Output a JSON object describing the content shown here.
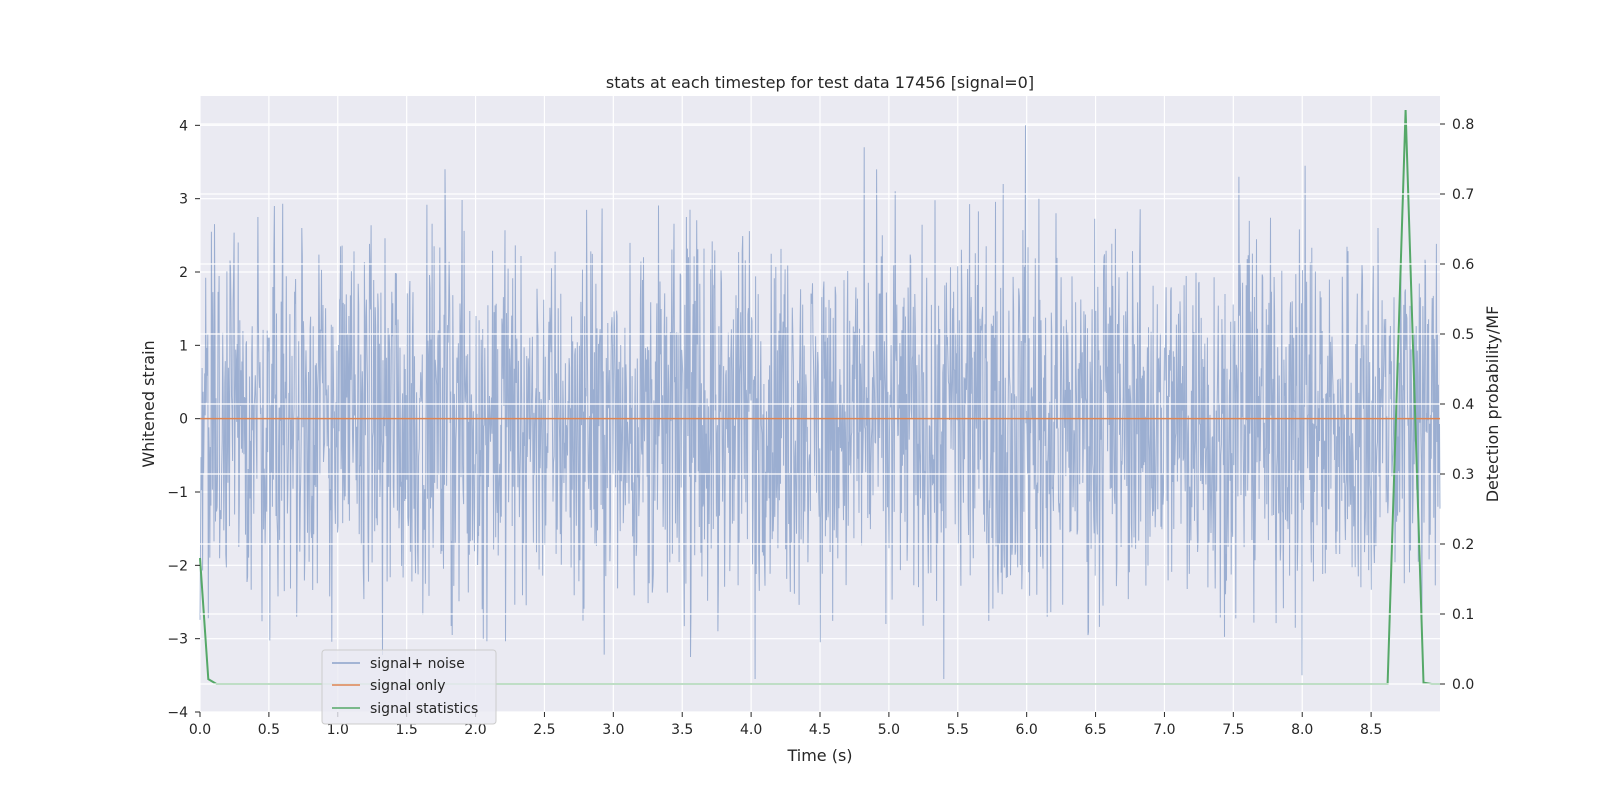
{
  "chart_data": {
    "type": "line",
    "title": "stats at each timestep for test data 17456 [signal=0]",
    "xlabel": "Time (s)",
    "ylabel": "Whitened strain",
    "y2label": "Detection probability/MF",
    "xlim": [
      0,
      9
    ],
    "ylim": [
      -4,
      4.4
    ],
    "y2lim": [
      -0.04,
      0.84
    ],
    "xticks": [
      "0.0",
      "0.5",
      "1.0",
      "1.5",
      "2.0",
      "2.5",
      "3.0",
      "3.5",
      "4.0",
      "4.5",
      "5.0",
      "5.5",
      "6.0",
      "6.5",
      "7.0",
      "7.5",
      "8.0",
      "8.5"
    ],
    "yticks": [
      "4",
      "3",
      "2",
      "1",
      "0",
      "−1",
      "−2",
      "−3",
      "−4"
    ],
    "y2ticks": [
      "0.8",
      "0.7",
      "0.6",
      "0.5",
      "0.4",
      "0.3",
      "0.2",
      "0.1",
      "0.0"
    ],
    "grid": true,
    "legend_position": "lower-left",
    "colors": {
      "signal_noise": "#4c72b0",
      "signal_only": "#dd8452",
      "signal_statistics": "#55a868",
      "axes_bg": "#eaeaf2",
      "grid": "#ffffff"
    },
    "series": [
      {
        "name": "signal+ noise",
        "axis": "left",
        "style": "noise-band",
        "typical_range": [
          -1.7,
          1.6
        ],
        "peaks": [
          {
            "x": 0.42,
            "y": 2.75
          },
          {
            "x": 0.54,
            "y": 2.9
          },
          {
            "x": 0.74,
            "y": 2.6
          },
          {
            "x": 1.78,
            "y": 3.4
          },
          {
            "x": 3.53,
            "y": 2.75
          },
          {
            "x": 4.82,
            "y": 3.7
          },
          {
            "x": 5.99,
            "y": 4.0
          },
          {
            "x": 5.83,
            "y": 3.2
          },
          {
            "x": 6.09,
            "y": 3.0
          },
          {
            "x": 7.54,
            "y": 3.3
          },
          {
            "x": 8.02,
            "y": 3.45
          },
          {
            "x": 8.55,
            "y": 2.6
          }
        ],
        "troughs": [
          {
            "x": 0.7,
            "y": -2.7
          },
          {
            "x": 1.83,
            "y": -2.95
          },
          {
            "x": 2.05,
            "y": -2.6
          },
          {
            "x": 3.56,
            "y": -3.25
          },
          {
            "x": 3.76,
            "y": -2.9
          },
          {
            "x": 4.03,
            "y": -3.55
          },
          {
            "x": 4.5,
            "y": -3.05
          },
          {
            "x": 4.98,
            "y": -2.8
          },
          {
            "x": 5.4,
            "y": -3.55
          },
          {
            "x": 6.15,
            "y": -2.7
          },
          {
            "x": 8.0,
            "y": -3.5
          },
          {
            "x": 7.95,
            "y": -2.85
          }
        ]
      },
      {
        "name": "signal only",
        "axis": "left",
        "x": [
          0,
          9
        ],
        "y": [
          0,
          0
        ]
      },
      {
        "name": "signal statistics",
        "axis": "right",
        "x": [
          0.0,
          0.06,
          0.12,
          0.5,
          1.0,
          2.0,
          3.0,
          4.0,
          5.0,
          6.0,
          7.0,
          8.0,
          8.5,
          8.62,
          8.75,
          8.88,
          8.94,
          9.0
        ],
        "y": [
          0.18,
          0.007,
          0.0,
          0.0,
          0.0,
          0.0,
          0.0,
          0.0,
          0.0,
          0.0,
          0.0,
          0.0,
          0.0,
          0.0,
          0.82,
          0.002,
          0.0,
          0.0
        ]
      }
    ]
  }
}
